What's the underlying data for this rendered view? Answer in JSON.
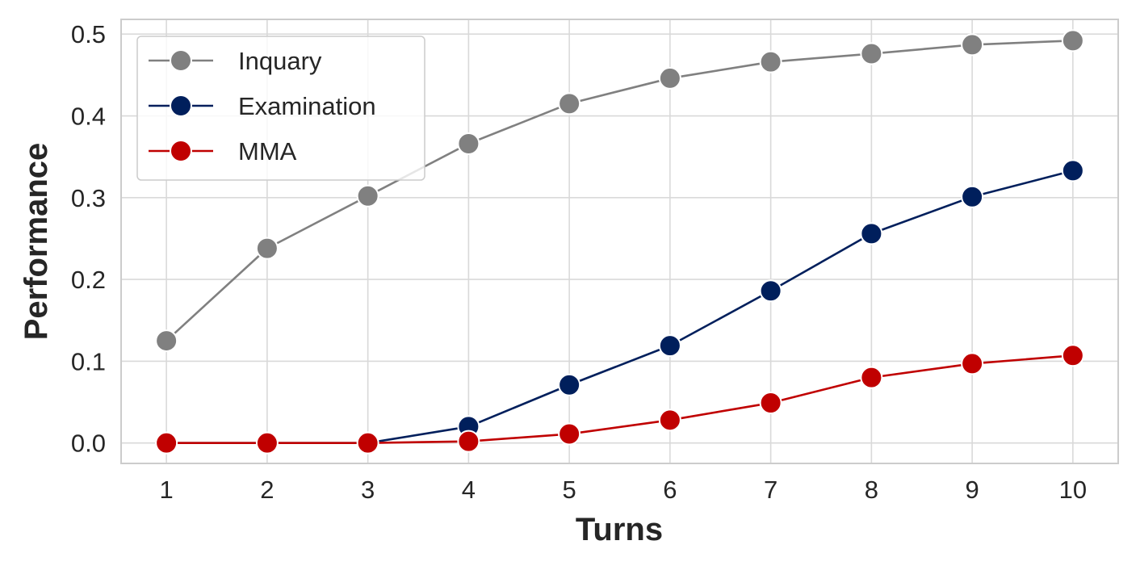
{
  "chart_data": {
    "type": "line",
    "title": "",
    "xlabel": "Turns",
    "ylabel": "Performance",
    "x": [
      1,
      2,
      3,
      4,
      5,
      6,
      7,
      8,
      9,
      10
    ],
    "x_tick_labels": [
      "1",
      "2",
      "3",
      "4",
      "5",
      "6",
      "7",
      "8",
      "9",
      "10"
    ],
    "y_ticks": [
      0.0,
      0.1,
      0.2,
      0.3,
      0.4,
      0.5
    ],
    "y_tick_labels": [
      "0.0",
      "0.1",
      "0.2",
      "0.3",
      "0.4",
      "0.5"
    ],
    "xlim": [
      0.55,
      10.45
    ],
    "ylim": [
      -0.025,
      0.518
    ],
    "grid": true,
    "legend_position": "top-left",
    "series": [
      {
        "name": "Inquary",
        "color": "#808080",
        "marker": "circle",
        "values": [
          0.125,
          0.238,
          0.302,
          0.366,
          0.415,
          0.446,
          0.466,
          0.476,
          0.487,
          0.492
        ]
      },
      {
        "name": "Examination",
        "color": "#001f5c",
        "marker": "circle",
        "values": [
          0.0,
          0.0,
          0.0,
          0.02,
          0.071,
          0.119,
          0.186,
          0.256,
          0.301,
          0.333
        ]
      },
      {
        "name": "MMA",
        "color": "#c00000",
        "marker": "circle",
        "values": [
          0.0,
          0.0,
          0.0,
          0.002,
          0.011,
          0.028,
          0.049,
          0.08,
          0.097,
          0.107
        ]
      }
    ]
  }
}
